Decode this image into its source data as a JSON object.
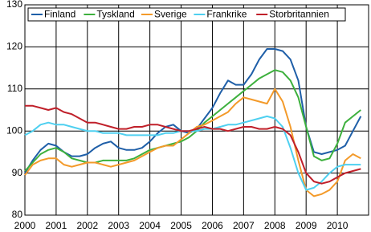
{
  "chart_data": {
    "type": "line",
    "x": [
      2000,
      2000.25,
      2000.5,
      2000.75,
      2001,
      2001.25,
      2001.5,
      2001.75,
      2002,
      2002.25,
      2002.5,
      2002.75,
      2003,
      2003.25,
      2003.5,
      2003.75,
      2004,
      2004.25,
      2004.5,
      2004.75,
      2005,
      2005.25,
      2005.5,
      2005.75,
      2006,
      2006.25,
      2006.5,
      2006.75,
      2007,
      2007.25,
      2007.5,
      2007.75,
      2008,
      2008.25,
      2008.5,
      2008.75,
      2009,
      2009.25,
      2009.5,
      2009.75,
      2010,
      2010.25,
      2010.5,
      2010.75
    ],
    "series": [
      {
        "name": "Finland",
        "color": "#1f5fa8",
        "values": [
          90,
          93,
          95.5,
          97,
          96.5,
          95,
          94,
          94,
          94.5,
          96,
          97,
          97.5,
          96,
          95.5,
          95.5,
          96,
          97.5,
          99.5,
          101,
          101.5,
          100,
          99.5,
          100.5,
          103,
          105.5,
          109,
          112,
          111,
          111,
          113.5,
          117,
          119.5,
          119.5,
          119,
          117,
          112,
          101,
          95,
          94.5,
          95,
          95.5,
          96.5,
          100,
          103.5
        ]
      },
      {
        "name": "Tyskland",
        "color": "#3db03d",
        "values": [
          90.5,
          92.5,
          94.5,
          95.5,
          96,
          95,
          93.5,
          93,
          92.5,
          92.5,
          93,
          93,
          93,
          93,
          93.5,
          94.5,
          95.5,
          96,
          96.5,
          97,
          97.5,
          98.5,
          100,
          102,
          103.5,
          105,
          106.5,
          108,
          109.5,
          111,
          112.5,
          113.5,
          114.5,
          114,
          112,
          108,
          101,
          94,
          93,
          93.5,
          97,
          102,
          103.5,
          105
        ]
      },
      {
        "name": "Sverige",
        "color": "#f39a2a",
        "values": [
          89.5,
          92,
          93,
          93.5,
          93.5,
          92,
          91.5,
          92,
          92.5,
          92.5,
          92,
          91.5,
          92,
          92.5,
          93,
          94,
          95,
          96,
          96.5,
          96.5,
          98,
          99.5,
          101,
          101.5,
          102.5,
          103.5,
          104.5,
          106.5,
          108,
          107.5,
          107,
          106.5,
          110,
          107,
          101,
          93,
          86,
          84.5,
          85,
          86,
          88,
          93,
          94.5,
          93.5
        ]
      },
      {
        "name": "Frankrike",
        "color": "#4fd0f0",
        "values": [
          99,
          100,
          101.5,
          102,
          101.5,
          101.5,
          101,
          100.5,
          100,
          100,
          99.5,
          99.5,
          99.5,
          99,
          99,
          99,
          99,
          99,
          99.5,
          99.5,
          100,
          100,
          100,
          100.5,
          100.5,
          101,
          101.5,
          101.5,
          102,
          102.5,
          103,
          103.5,
          103,
          101,
          96,
          90,
          86,
          86.5,
          88,
          90,
          91.5,
          92,
          92,
          92
        ]
      },
      {
        "name": "Storbritannien",
        "color": "#c0202a",
        "values": [
          106,
          106,
          105.5,
          105,
          105.5,
          104.5,
          104,
          103,
          102,
          102,
          101.5,
          101,
          100.5,
          100.5,
          101,
          101,
          101.5,
          101.5,
          101,
          100.5,
          100,
          100,
          100.5,
          101,
          100.5,
          100.5,
          100,
          100.5,
          101,
          101,
          100.5,
          100.5,
          101,
          100.5,
          99,
          95,
          90,
          88,
          87.5,
          88,
          89,
          90,
          90.5,
          91
        ]
      }
    ],
    "xlim": [
      2000,
      2011
    ],
    "xticks": [
      2000,
      2001,
      2002,
      2003,
      2004,
      2005,
      2006,
      2007,
      2008,
      2009,
      2010
    ],
    "ylim": [
      80,
      130
    ],
    "yticks": [
      80,
      90,
      100,
      110,
      120,
      130
    ],
    "grid": true,
    "legend": "upper left"
  }
}
